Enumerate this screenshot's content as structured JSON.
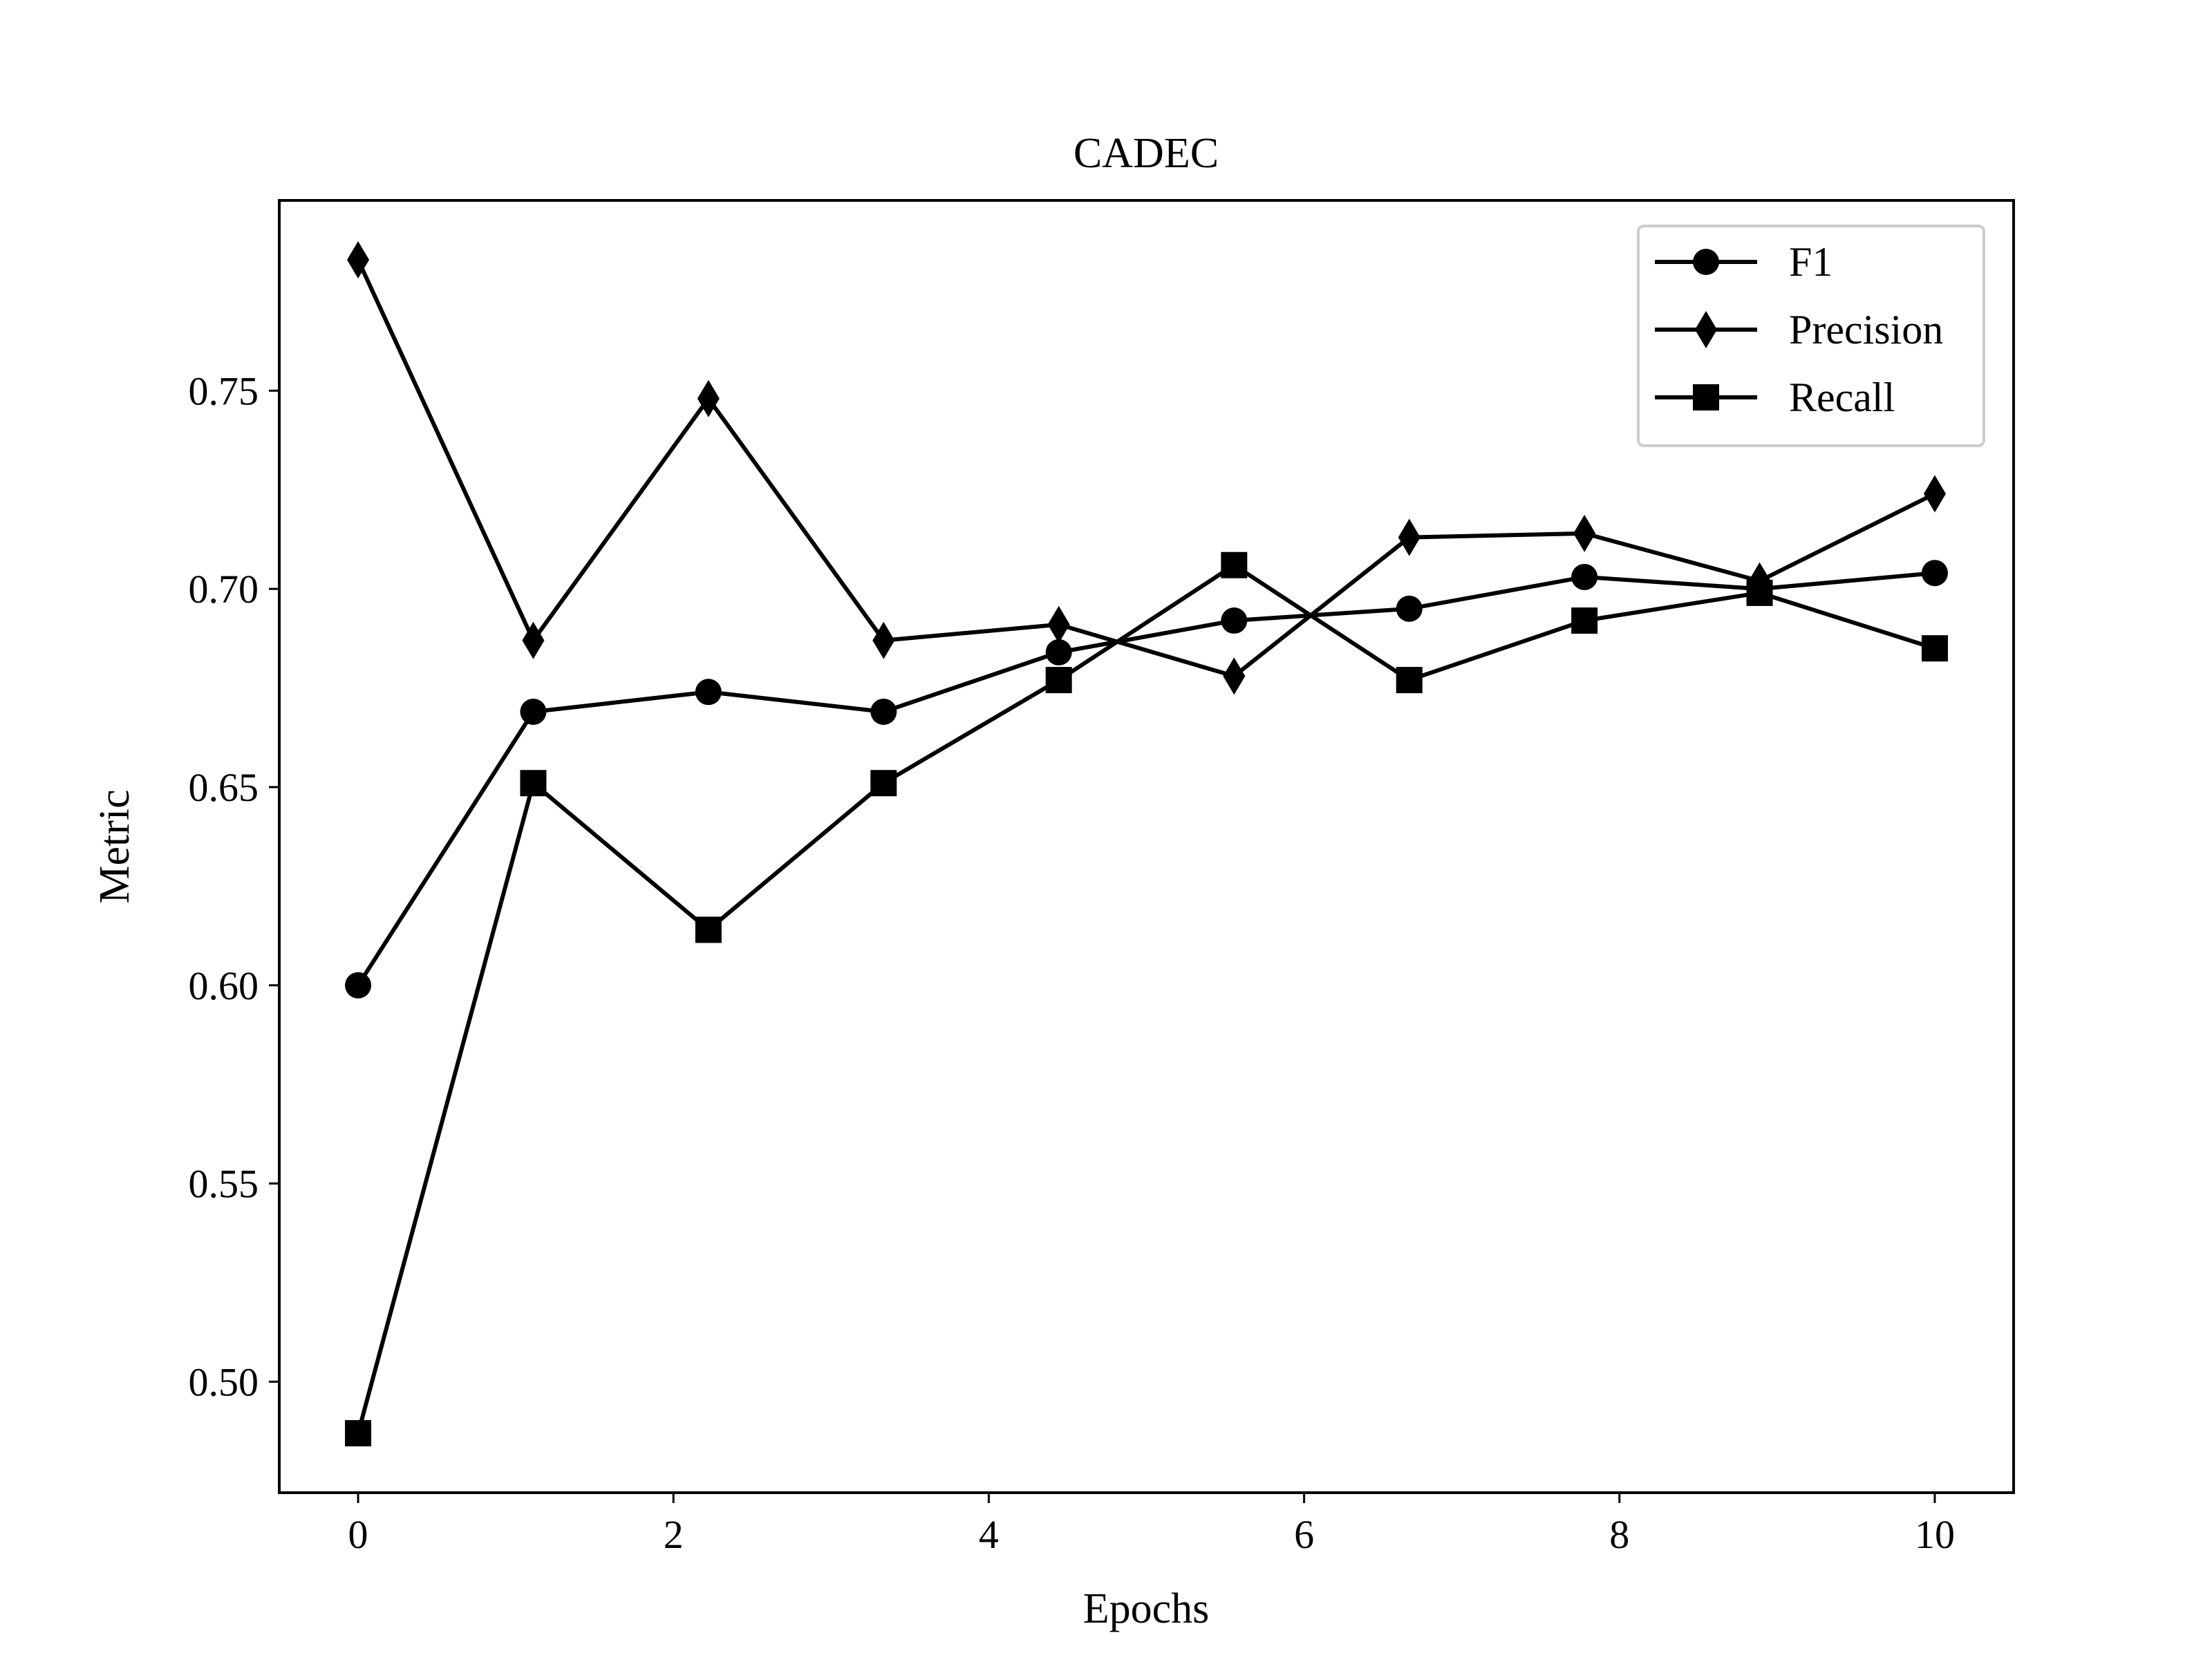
{
  "chart_data": {
    "type": "line",
    "title": "CADEC",
    "xlabel": "Epochs",
    "ylabel": "Metric",
    "xlim": [
      -0.5,
      10.5
    ],
    "ylim": [
      0.472,
      0.798
    ],
    "xticks": [
      0,
      2,
      4,
      6,
      8,
      10
    ],
    "xtick_labels": [
      "0",
      "2",
      "4",
      "6",
      "8",
      "10"
    ],
    "yticks": [
      0.5,
      0.55,
      0.6,
      0.65,
      0.7,
      0.75
    ],
    "ytick_labels": [
      "0.50",
      "0.55",
      "0.60",
      "0.65",
      "0.70",
      "0.75"
    ],
    "grid": false,
    "legend_position": "top-right",
    "line_color": "#000000",
    "x": [
      0,
      1.111,
      2.222,
      3.333,
      4.444,
      5.556,
      6.667,
      7.778,
      8.889,
      10
    ],
    "series": [
      {
        "name": "F1",
        "marker": "circle",
        "values": [
          0.6,
          0.669,
          0.674,
          0.669,
          0.684,
          0.692,
          0.695,
          0.703,
          0.7,
          0.704
        ]
      },
      {
        "name": "Precision",
        "marker": "diamond",
        "values": [
          0.783,
          0.687,
          0.748,
          0.687,
          0.691,
          0.678,
          0.713,
          0.714,
          0.702,
          0.724
        ]
      },
      {
        "name": "Recall",
        "marker": "square",
        "values": [
          0.487,
          0.651,
          0.614,
          0.651,
          0.677,
          0.706,
          0.677,
          0.692,
          0.699,
          0.685
        ]
      }
    ]
  }
}
